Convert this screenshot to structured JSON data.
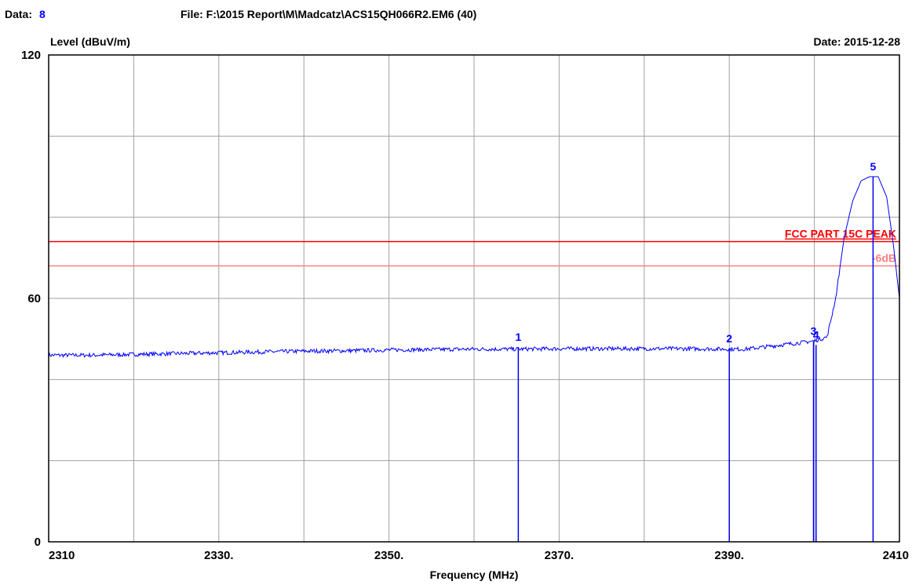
{
  "header": {
    "data_label": "Data:",
    "data_value": "8",
    "file_label": "File: F:\\2015 Report\\M\\Madcatz\\ACS15QH066R2.EM6  (40)",
    "date_label": "Date: 2015-12-28"
  },
  "colors": {
    "trace": "#0000ff",
    "limit_line": "#ff0000",
    "margin_line": "#ff8080",
    "grid": "#a0a0a0",
    "data_value": "#0000ff"
  },
  "chart_data": {
    "type": "line",
    "title": "",
    "xlabel": "Frequency (MHz)",
    "ylabel": "Level (dBuV/m)",
    "xlim": [
      2310,
      2410
    ],
    "ylim": [
      0,
      120
    ],
    "x_ticks": [
      {
        "value": 2310,
        "label": "2310"
      },
      {
        "value": 2330,
        "label": "2330."
      },
      {
        "value": 2350,
        "label": "2350."
      },
      {
        "value": 2370,
        "label": "2370."
      },
      {
        "value": 2390,
        "label": "2390."
      },
      {
        "value": 2410,
        "label": "2410"
      }
    ],
    "y_ticks": [
      {
        "value": 0,
        "label": "0"
      },
      {
        "value": 60,
        "label": "60"
      },
      {
        "value": 120,
        "label": "120"
      }
    ],
    "grid": true,
    "x_grid_step": 10,
    "y_grid_step": 20,
    "series": [
      {
        "x": [
          2310,
          2315,
          2320,
          2325,
          2330,
          2335,
          2340,
          2345,
          2350,
          2355,
          2360,
          2365,
          2370,
          2375,
          2380,
          2385,
          2390,
          2392,
          2394,
          2396,
          2398,
          2400,
          2401.5,
          2402.5,
          2403.5,
          2404.5,
          2405.5,
          2406.5,
          2407.5,
          2408.5,
          2409.3,
          2410
        ],
        "y": [
          46,
          46,
          46.2,
          46.4,
          46.6,
          46.8,
          47,
          47.1,
          47.3,
          47.4,
          47.5,
          47.5,
          47.6,
          47.6,
          47.6,
          47.6,
          47.5,
          47.5,
          48,
          48.5,
          49,
          49.5,
          50.5,
          60,
          75,
          84,
          89,
          90,
          90,
          85,
          73,
          60
        ]
      }
    ],
    "noise_amplitude": 0.5,
    "limits": [
      {
        "name": "FCC PART 15C PEAK",
        "value": 74
      },
      {
        "name": "-6dB",
        "value": 68
      }
    ],
    "markers": [
      {
        "label": "1",
        "x": 2365.2,
        "y": 48
      },
      {
        "label": "2",
        "x": 2390,
        "y": 47.6
      },
      {
        "label": "3",
        "x": 2399.9,
        "y": 49.5
      },
      {
        "label": "4",
        "x": 2400.2,
        "y": 48.5
      },
      {
        "label": "5",
        "x": 2406.9,
        "y": 90
      }
    ]
  }
}
